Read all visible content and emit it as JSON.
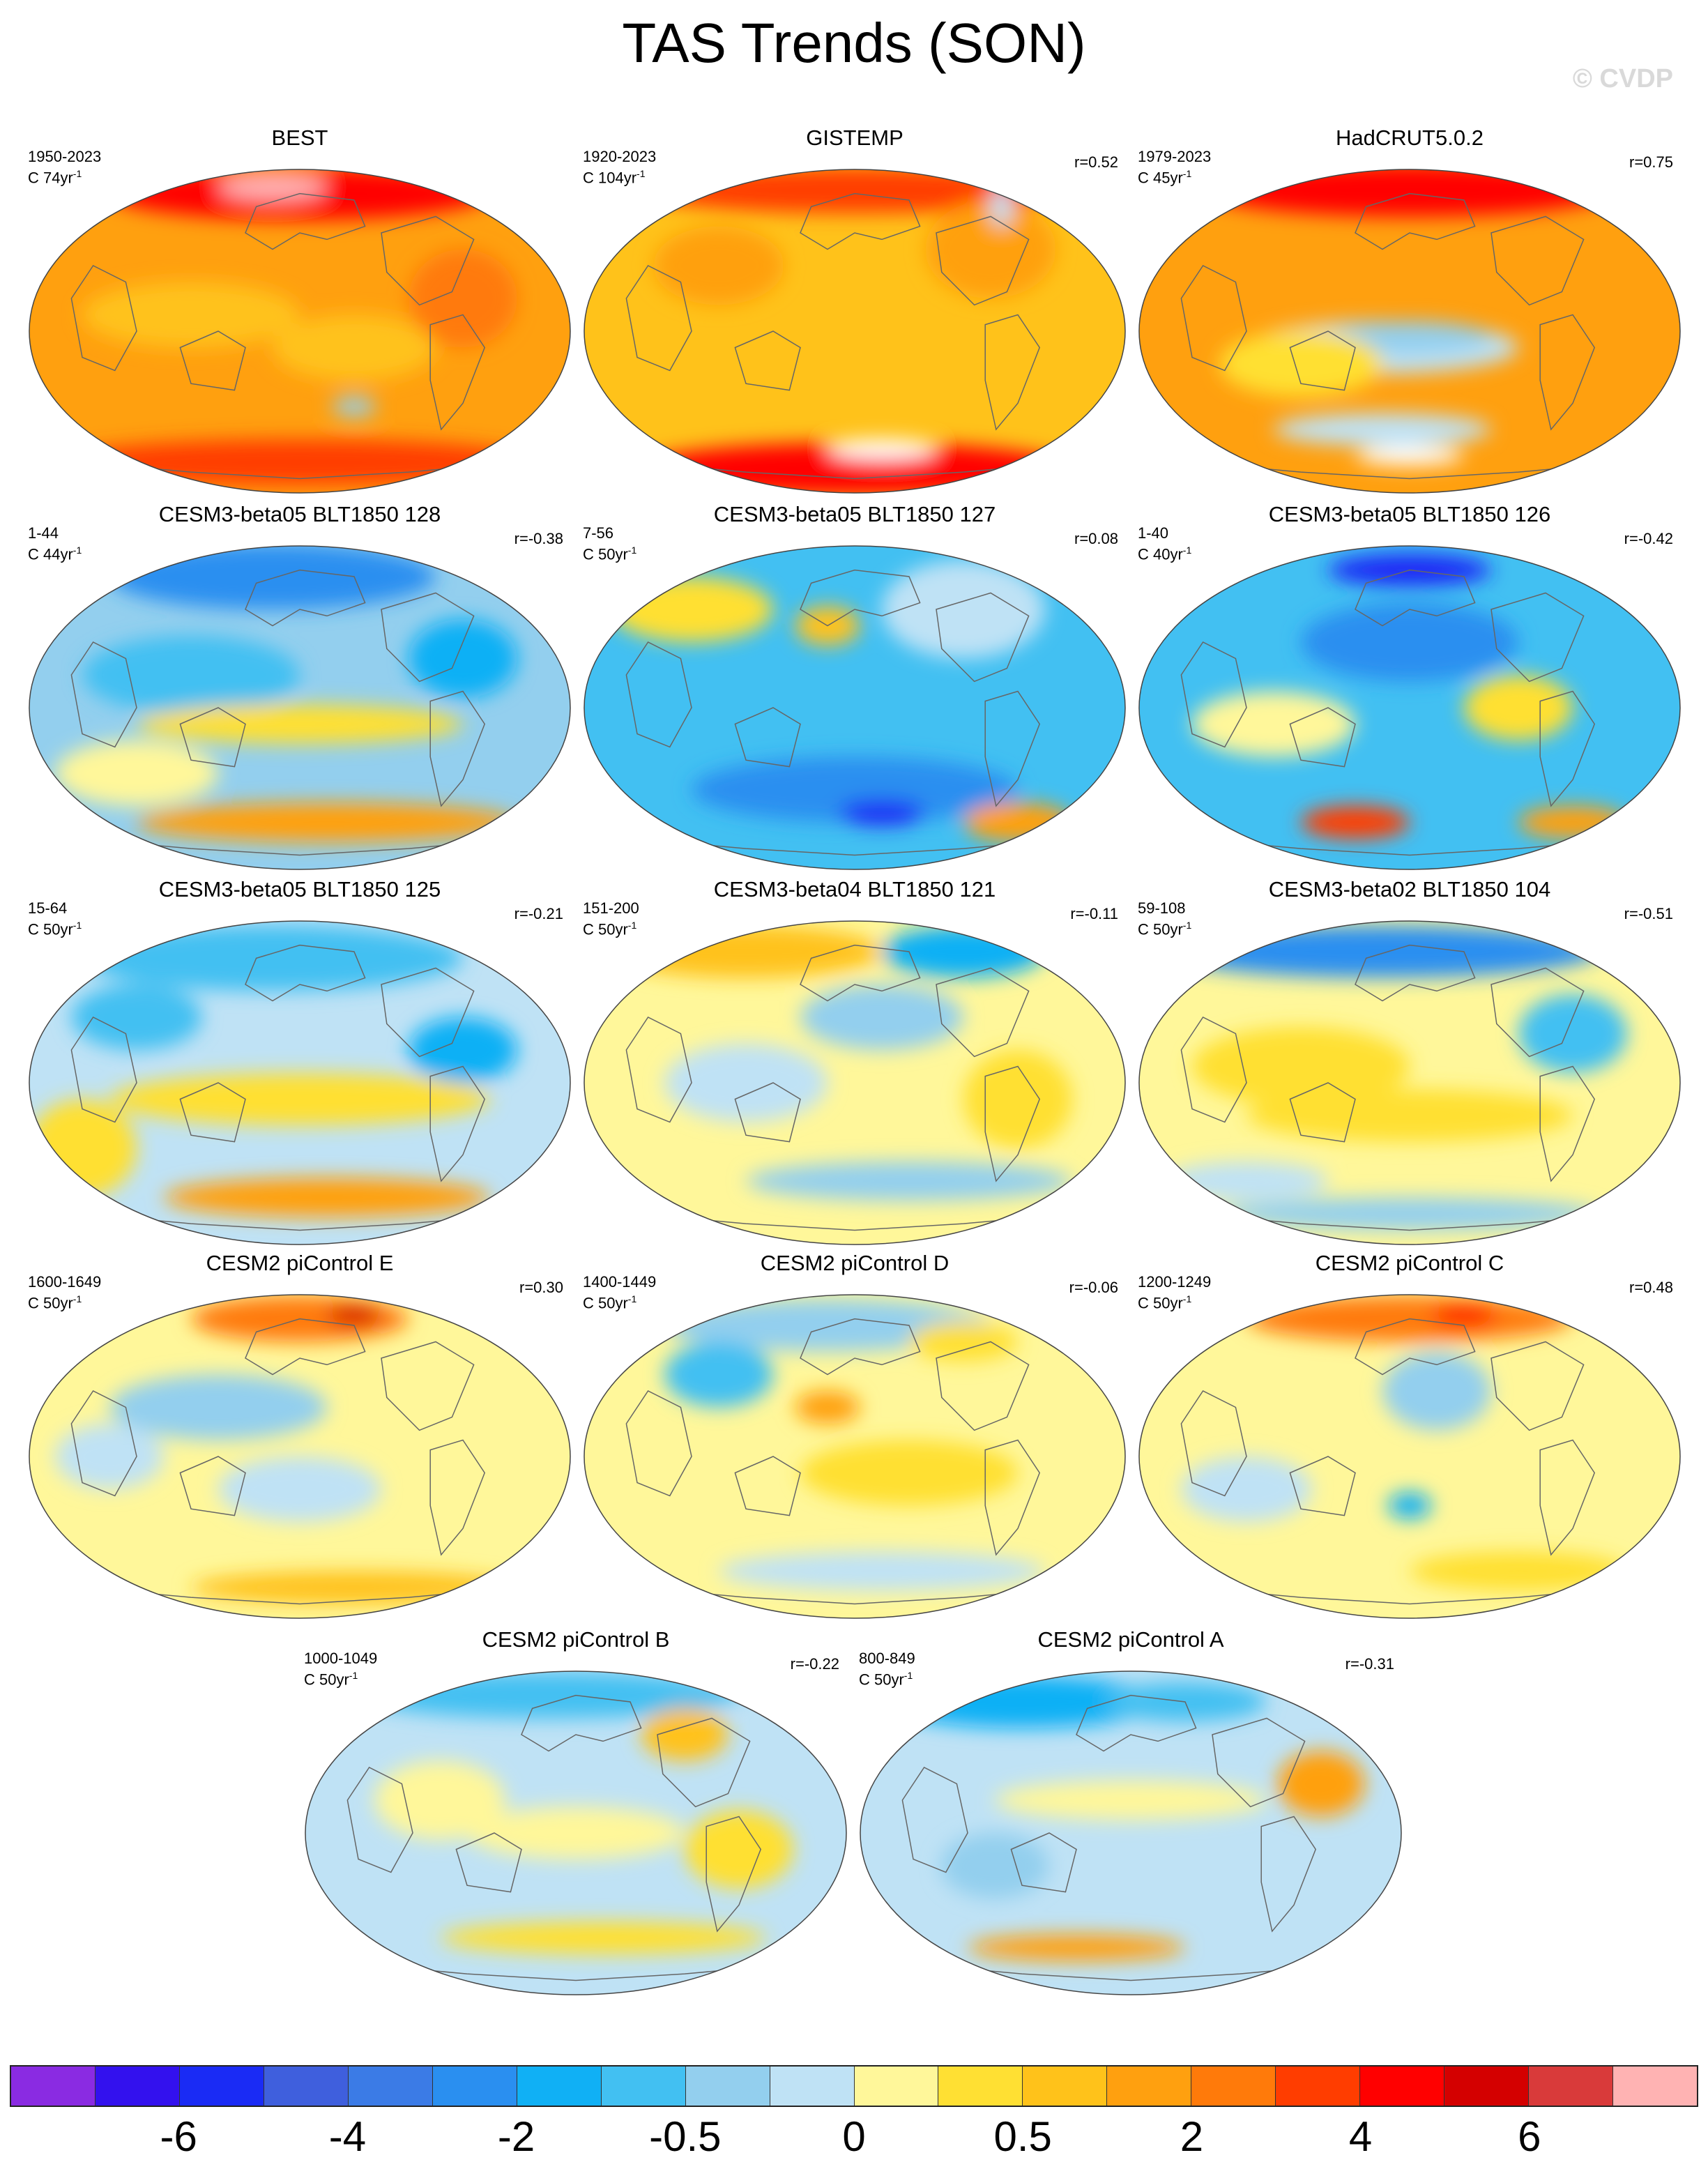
{
  "title": "TAS Trends (SON)",
  "copyright": "© CVDP",
  "panels": [
    {
      "title": "BEST",
      "years": "1950-2023",
      "units": "C 74yr",
      "corr": "",
      "style": "obs1"
    },
    {
      "title": "GISTEMP",
      "years": "1920-2023",
      "units": "C 104yr",
      "corr": "r=0.52",
      "style": "obs2"
    },
    {
      "title": "HadCRUT5.0.2",
      "years": "1979-2023",
      "units": "C 45yr",
      "corr": "r=0.75",
      "style": "obs3"
    },
    {
      "title": "CESM3-beta05 BLT1850 128",
      "years": "1-44",
      "units": "C 44yr",
      "corr": "r=-0.38",
      "style": "cold1"
    },
    {
      "title": "CESM3-beta05 BLT1850 127",
      "years": "7-56",
      "units": "C 50yr",
      "corr": "r=0.08",
      "style": "cold2"
    },
    {
      "title": "CESM3-beta05 BLT1850 126",
      "years": "1-40",
      "units": "C 40yr",
      "corr": "r=-0.42",
      "style": "cold3"
    },
    {
      "title": "CESM3-beta05 BLT1850 125",
      "years": "15-64",
      "units": "C 50yr",
      "corr": "r=-0.21",
      "style": "mix1"
    },
    {
      "title": "CESM3-beta04 BLT1850 121",
      "years": "151-200",
      "units": "C 50yr",
      "corr": "r=-0.11",
      "style": "mix2"
    },
    {
      "title": "CESM3-beta02 BLT1850 104",
      "years": "59-108",
      "units": "C 50yr",
      "corr": "r=-0.51",
      "style": "mix3"
    },
    {
      "title": "CESM2 piControl E",
      "years": "1600-1649",
      "units": "C 50yr",
      "corr": "r=0.30",
      "style": "pc1"
    },
    {
      "title": "CESM2 piControl D",
      "years": "1400-1449",
      "units": "C 50yr",
      "corr": "r=-0.06",
      "style": "pc2"
    },
    {
      "title": "CESM2 piControl C",
      "years": "1200-1249",
      "units": "C 50yr",
      "corr": "r=0.48",
      "style": "pc3"
    },
    {
      "title": "CESM2 piControl B",
      "years": "1000-1049",
      "units": "C 50yr",
      "corr": "r=-0.22",
      "style": "pc4"
    },
    {
      "title": "CESM2 piControl A",
      "years": "800-849",
      "units": "C 50yr",
      "corr": "r=-0.31",
      "style": "pc5"
    }
  ],
  "units_superscript": "-1",
  "colorbar": {
    "colors": [
      "#8a2be2",
      "#3311ee",
      "#1a2bf5",
      "#3f5fdd",
      "#3b7be6",
      "#2a8ff0",
      "#10b0f5",
      "#42c0f2",
      "#93cfee",
      "#bfe2f5",
      "#fff79a",
      "#ffe033",
      "#ffc21a",
      "#ffa00f",
      "#ff7a0a",
      "#ff3d00",
      "#ff0000",
      "#d40000",
      "#d93a3a",
      "#ffb3b3"
    ],
    "labels": [
      "-6",
      "-4",
      "-2",
      "-0.5",
      "0",
      "0.5",
      "2",
      "4",
      "6"
    ]
  }
}
